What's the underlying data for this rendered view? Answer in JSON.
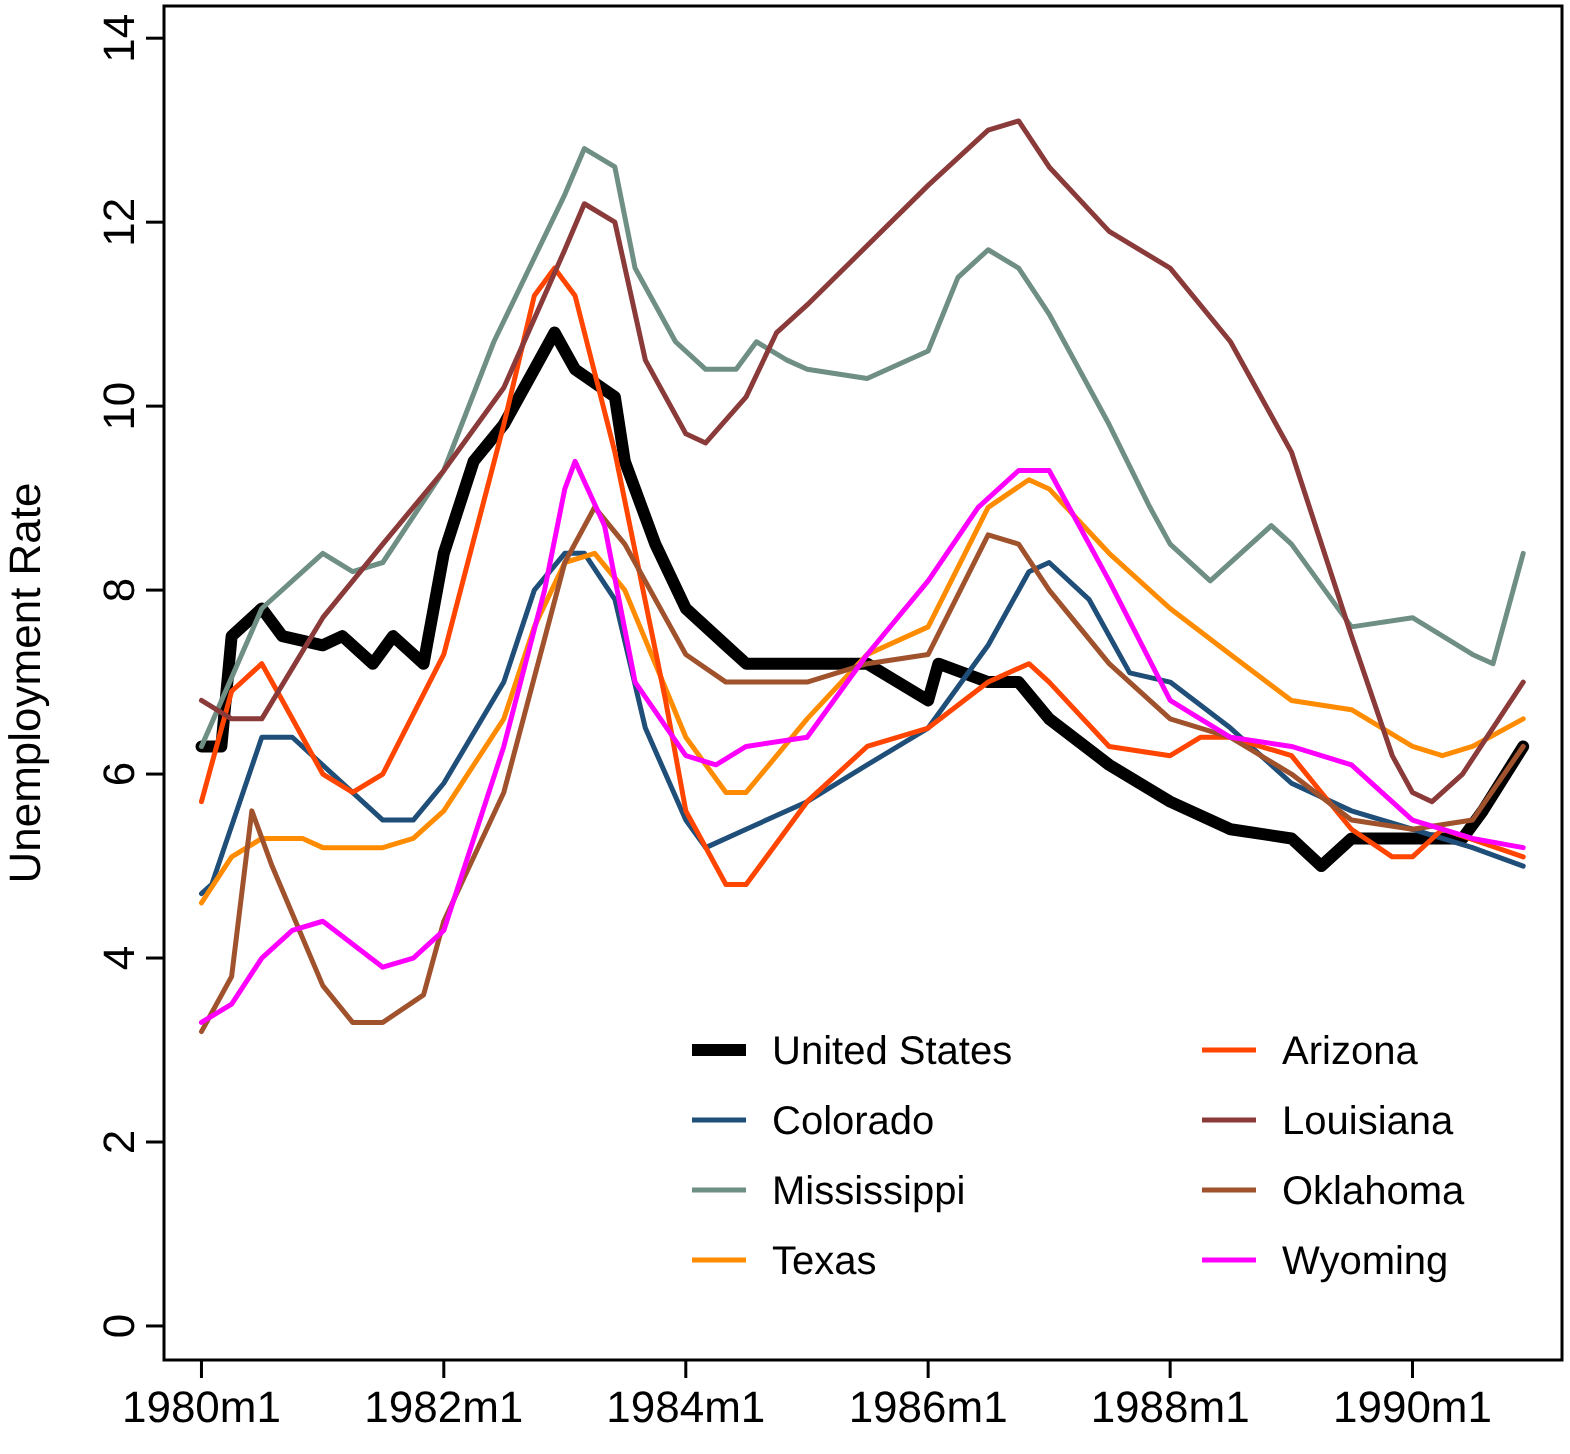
{
  "chart_data": {
    "type": "line",
    "ylabel": "Unemployment Rate",
    "xlim": [
      "1979-09-10",
      "1991-03-28"
    ],
    "ylim": [
      -0.37,
      14.35
    ],
    "xticks": [
      {
        "value": "1980-01",
        "label": "1980m1"
      },
      {
        "value": "1982-01",
        "label": "1982m1"
      },
      {
        "value": "1984-01",
        "label": "1984m1"
      },
      {
        "value": "1986-01",
        "label": "1986m1"
      },
      {
        "value": "1988-01",
        "label": "1988m1"
      },
      {
        "value": "1990-01",
        "label": "1990m1"
      }
    ],
    "yticks": [
      0,
      2,
      4,
      6,
      8,
      10,
      12,
      14
    ],
    "grid": false,
    "legend": "bottom right",
    "marker": "none",
    "line_style": "solid",
    "series": [
      {
        "name": "United States",
        "color": "#000000",
        "x": [
          "1980-01",
          "1980-03",
          "1980-04",
          "1980-07",
          "1980-09",
          "1981-01",
          "1981-03",
          "1981-06",
          "1981-08",
          "1981-11",
          "1982-01",
          "1982-04",
          "1982-07",
          "1982-10",
          "1982-12",
          "1983-02",
          "1983-06",
          "1983-07",
          "1983-10",
          "1984-01",
          "1984-05",
          "1984-07",
          "1985-01",
          "1985-07",
          "1986-01",
          "1986-02",
          "1986-07",
          "1986-10",
          "1987-01",
          "1987-07",
          "1988-01",
          "1988-07",
          "1989-01",
          "1989-04",
          "1989-07",
          "1990-01",
          "1990-06",
          "1990-08",
          "1990-12"
        ],
        "values": [
          6.3,
          6.3,
          7.5,
          7.8,
          7.5,
          7.4,
          7.5,
          7.2,
          7.5,
          7.2,
          8.4,
          9.4,
          9.8,
          10.4,
          10.8,
          10.4,
          10.1,
          9.4,
          8.5,
          7.8,
          7.4,
          7.2,
          7.2,
          7.2,
          6.8,
          7.2,
          7.0,
          7.0,
          6.6,
          6.1,
          5.7,
          5.4,
          5.3,
          5.0,
          5.3,
          5.3,
          5.3,
          5.6,
          6.3
        ]
      },
      {
        "name": "Colorado",
        "color": "#1f4e79",
        "x": [
          "1980-01",
          "1980-02",
          "1980-07",
          "1980-10",
          "1981-07",
          "1981-10",
          "1982-01",
          "1982-07",
          "1982-10",
          "1983-01",
          "1983-03",
          "1983-06",
          "1983-09",
          "1984-01",
          "1984-03",
          "1984-07",
          "1985-01",
          "1985-07",
          "1986-01",
          "1986-07",
          "1986-11",
          "1987-01",
          "1987-05",
          "1987-09",
          "1988-01",
          "1988-07",
          "1989-01",
          "1989-07",
          "1990-01",
          "1990-07",
          "1990-12"
        ],
        "values": [
          4.7,
          4.8,
          6.4,
          6.4,
          5.5,
          5.5,
          5.9,
          7.0,
          8.0,
          8.4,
          8.4,
          7.9,
          6.5,
          5.5,
          5.2,
          5.4,
          5.7,
          6.1,
          6.5,
          7.4,
          8.2,
          8.3,
          7.9,
          7.1,
          7.0,
          6.5,
          5.9,
          5.6,
          5.4,
          5.2,
          5.0
        ]
      },
      {
        "name": "Mississippi",
        "color": "#6f8f84",
        "x": [
          "1980-01",
          "1980-07",
          "1980-10",
          "1981-01",
          "1981-04",
          "1981-07",
          "1982-01",
          "1982-06",
          "1983-01",
          "1983-03",
          "1983-06",
          "1983-08",
          "1983-12",
          "1984-03",
          "1984-06",
          "1984-08",
          "1984-11",
          "1985-01",
          "1985-07",
          "1986-01",
          "1986-04",
          "1986-07",
          "1986-10",
          "1987-01",
          "1987-07",
          "1987-11",
          "1988-01",
          "1988-05",
          "1988-11",
          "1989-01",
          "1989-07",
          "1990-01",
          "1990-07",
          "1990-09",
          "1990-12"
        ],
        "values": [
          6.3,
          7.8,
          8.1,
          8.4,
          8.2,
          8.3,
          9.3,
          10.7,
          12.3,
          12.8,
          12.6,
          11.5,
          10.7,
          10.4,
          10.4,
          10.7,
          10.5,
          10.4,
          10.3,
          10.6,
          11.4,
          11.7,
          11.5,
          11.0,
          9.8,
          8.9,
          8.5,
          8.1,
          8.7,
          8.5,
          7.6,
          7.7,
          7.3,
          7.2,
          8.4
        ]
      },
      {
        "name": "Texas",
        "color": "#ff8c00",
        "x": [
          "1980-01",
          "1980-04",
          "1980-07",
          "1980-11",
          "1981-01",
          "1981-07",
          "1981-10",
          "1982-01",
          "1982-07",
          "1982-10",
          "1983-01",
          "1983-04",
          "1983-07",
          "1983-10",
          "1984-01",
          "1984-05",
          "1984-07",
          "1985-01",
          "1985-07",
          "1986-01",
          "1986-07",
          "1986-11",
          "1987-01",
          "1987-07",
          "1988-01",
          "1988-07",
          "1989-01",
          "1989-07",
          "1990-01",
          "1990-04",
          "1990-07",
          "1990-12"
        ],
        "values": [
          4.6,
          5.1,
          5.3,
          5.3,
          5.2,
          5.2,
          5.3,
          5.6,
          6.6,
          7.6,
          8.3,
          8.4,
          8.0,
          7.2,
          6.4,
          5.8,
          5.8,
          6.6,
          7.3,
          7.6,
          8.9,
          9.2,
          9.1,
          8.4,
          7.8,
          7.3,
          6.8,
          6.7,
          6.3,
          6.2,
          6.3,
          6.6
        ]
      },
      {
        "name": "Arizona",
        "color": "#ff4500",
        "x": [
          "1980-01",
          "1980-04",
          "1980-07",
          "1980-09",
          "1981-01",
          "1981-04",
          "1981-07",
          "1982-01",
          "1982-07",
          "1982-10",
          "1982-12",
          "1983-02",
          "1983-06",
          "1983-11",
          "1984-01",
          "1984-05",
          "1984-07",
          "1985-01",
          "1985-07",
          "1986-01",
          "1986-07",
          "1986-11",
          "1987-01",
          "1987-07",
          "1988-01",
          "1988-04",
          "1988-07",
          "1989-01",
          "1989-04",
          "1989-07",
          "1989-11",
          "1990-01",
          "1990-04",
          "1990-12"
        ],
        "values": [
          5.7,
          6.9,
          7.2,
          6.8,
          6.0,
          5.8,
          6.0,
          7.3,
          9.8,
          11.2,
          11.5,
          11.2,
          9.5,
          6.8,
          5.6,
          4.8,
          4.8,
          5.7,
          6.3,
          6.5,
          7.0,
          7.2,
          7.0,
          6.3,
          6.2,
          6.4,
          6.4,
          6.2,
          5.8,
          5.4,
          5.1,
          5.1,
          5.4,
          5.1
        ]
      },
      {
        "name": "Louisiana",
        "color": "#8b3a3a",
        "x": [
          "1980-01",
          "1980-04",
          "1980-07",
          "1981-01",
          "1981-07",
          "1982-01",
          "1982-07",
          "1983-01",
          "1983-03",
          "1983-06",
          "1983-09",
          "1984-01",
          "1984-03",
          "1984-07",
          "1984-10",
          "1985-01",
          "1986-01",
          "1986-07",
          "1986-10",
          "1987-01",
          "1987-07",
          "1988-01",
          "1988-07",
          "1989-01",
          "1989-07",
          "1989-11",
          "1990-01",
          "1990-03",
          "1990-06",
          "1990-12"
        ],
        "values": [
          6.8,
          6.6,
          6.6,
          7.7,
          8.5,
          9.3,
          10.2,
          11.7,
          12.2,
          12.0,
          10.5,
          9.7,
          9.6,
          10.1,
          10.8,
          11.1,
          12.4,
          13.0,
          13.1,
          12.6,
          11.9,
          11.5,
          10.7,
          9.5,
          7.5,
          6.2,
          5.8,
          5.7,
          6.0,
          7.0
        ]
      },
      {
        "name": "Oklahoma",
        "color": "#a0522d",
        "x": [
          "1980-01",
          "1980-04",
          "1980-06",
          "1980-08",
          "1981-01",
          "1981-04",
          "1981-07",
          "1981-11",
          "1982-01",
          "1982-07",
          "1983-01",
          "1983-04",
          "1983-07",
          "1984-01",
          "1984-05",
          "1985-01",
          "1985-07",
          "1986-01",
          "1986-07",
          "1986-10",
          "1987-01",
          "1987-07",
          "1988-01",
          "1988-07",
          "1989-01",
          "1989-07",
          "1990-01",
          "1990-07",
          "1990-12"
        ],
        "values": [
          3.2,
          3.8,
          5.6,
          5.0,
          3.7,
          3.3,
          3.3,
          3.6,
          4.4,
          5.8,
          8.3,
          8.9,
          8.5,
          7.3,
          7.0,
          7.0,
          7.2,
          7.3,
          8.6,
          8.5,
          8.0,
          7.2,
          6.6,
          6.4,
          6.0,
          5.5,
          5.4,
          5.5,
          6.3
        ]
      },
      {
        "name": "Wyoming",
        "color": "#ff00ff",
        "x": [
          "1980-01",
          "1980-04",
          "1980-07",
          "1980-10",
          "1981-01",
          "1981-07",
          "1981-10",
          "1982-01",
          "1982-07",
          "1982-11",
          "1983-01",
          "1983-02",
          "1983-05",
          "1983-08",
          "1984-01",
          "1984-04",
          "1984-07",
          "1985-01",
          "1985-07",
          "1986-01",
          "1986-06",
          "1986-10",
          "1987-01",
          "1987-07",
          "1988-01",
          "1988-07",
          "1989-01",
          "1989-07",
          "1990-01",
          "1990-07",
          "1990-12"
        ],
        "values": [
          3.3,
          3.5,
          4.0,
          4.3,
          4.4,
          3.9,
          4.0,
          4.3,
          6.3,
          8.0,
          9.1,
          9.4,
          8.7,
          7.0,
          6.2,
          6.1,
          6.3,
          6.4,
          7.3,
          8.1,
          8.9,
          9.3,
          9.3,
          8.1,
          6.8,
          6.4,
          6.3,
          6.1,
          5.5,
          5.3,
          5.2
        ]
      }
    ]
  }
}
